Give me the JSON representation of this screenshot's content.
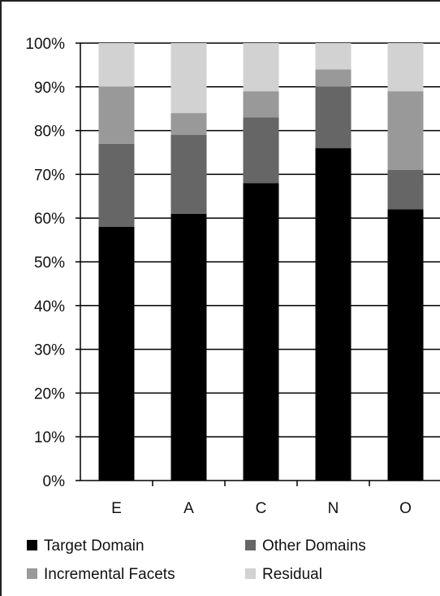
{
  "chart_data": {
    "type": "bar",
    "stacked": true,
    "categories": [
      "E",
      "A",
      "C",
      "N",
      "O"
    ],
    "series": [
      {
        "name": "Target Domain",
        "color": "#000000",
        "values": [
          58,
          61,
          68,
          76,
          62
        ]
      },
      {
        "name": "Other Domains",
        "color": "#666666",
        "values": [
          19,
          18,
          15,
          14,
          9
        ]
      },
      {
        "name": "Incremental Facets",
        "color": "#999999",
        "values": [
          13,
          5,
          6,
          4,
          18
        ]
      },
      {
        "name": "Residual",
        "color": "#d2d2d2",
        "values": [
          10,
          16,
          11,
          6,
          11
        ]
      }
    ],
    "ylim": [
      0,
      100
    ],
    "yticks": [
      "0%",
      "10%",
      "20%",
      "30%",
      "40%",
      "50%",
      "60%",
      "70%",
      "80%",
      "90%",
      "100%"
    ],
    "grid": true,
    "legend_position": "bottom",
    "title": "",
    "xlabel": "",
    "ylabel": ""
  }
}
